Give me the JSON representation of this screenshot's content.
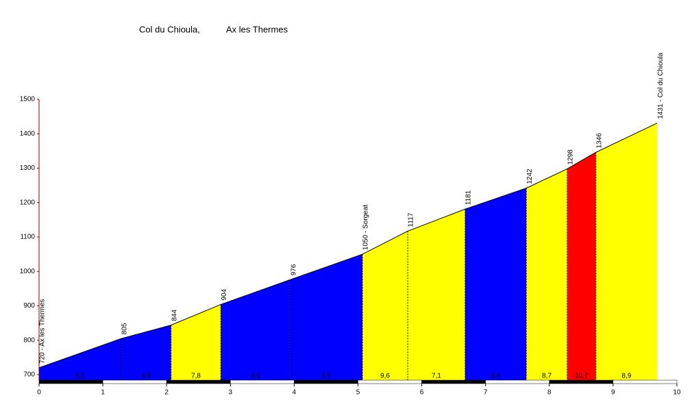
{
  "chart_data": {
    "type": "profile",
    "title": "Col du Chioula,",
    "subtitle": "Ax les Thermes",
    "x": [
      0,
      1.29,
      2.07,
      2.85,
      3.94,
      5.07,
      5.78,
      6.68,
      7.64,
      8.28,
      8.73,
      9.69
    ],
    "values": [
      720,
      805,
      844,
      904,
      976,
      1050,
      1117,
      1181,
      1242,
      1298,
      1346,
      1431
    ],
    "value_labels": [
      "720 - Ax les Thermes",
      "805",
      "844",
      "904",
      "976",
      "1050 - Sorgeat",
      "1117",
      "1181",
      "1242",
      "1298",
      "1346",
      "1431 - Col du Chioula"
    ],
    "gradients": {
      "values": [
        6.5,
        4.9,
        7.8,
        6.6,
        6.5,
        9.6,
        7.1,
        6.4,
        8.7,
        10.7,
        8.9
      ],
      "value_labels": [
        "6,5",
        "4,9",
        "7,8",
        "6,6",
        "6,5",
        "9,6",
        "7,1",
        "6,4",
        "8,7",
        "10,7",
        "8,9"
      ],
      "colors": [
        "#0000ff",
        "#0000ff",
        "#ffff00",
        "#0000ff",
        "#0000ff",
        "#ffff00",
        "#ffff00",
        "#0000ff",
        "#ffff00",
        "#ff0000",
        "#ffff00"
      ]
    },
    "xlim": [
      0,
      10
    ],
    "xticks": [
      0,
      1,
      2,
      3,
      4,
      5,
      6,
      7,
      8,
      9,
      10
    ],
    "ylim": [
      682,
      1500
    ],
    "yticks": [
      700,
      800,
      900,
      1000,
      1100,
      1200,
      1300,
      1400,
      1500
    ]
  }
}
